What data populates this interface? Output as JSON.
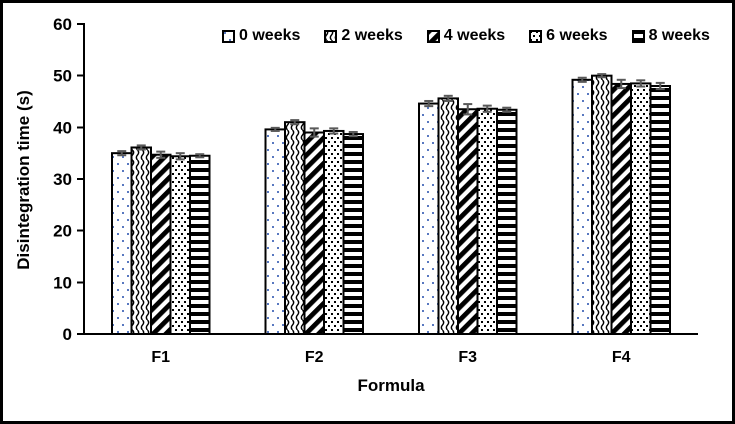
{
  "figure": {
    "background": "#ffffff",
    "border_color": "#000000"
  },
  "chart_data": {
    "type": "bar",
    "title": "",
    "xlabel": "Formula",
    "ylabel": "Disintegration time (s)",
    "ylim": [
      0,
      60
    ],
    "yticks": [
      0,
      10,
      20,
      30,
      40,
      50,
      60
    ],
    "grid": false,
    "legend_position": "top",
    "categories": [
      "F1",
      "F2",
      "F3",
      "F4"
    ],
    "series": [
      {
        "name": "0 weeks",
        "pattern": "sparse-blue-dots",
        "values": [
          35.0,
          39.6,
          44.6,
          49.2
        ],
        "errors": [
          0.4,
          0.3,
          0.5,
          0.4
        ]
      },
      {
        "name": "2 weeks",
        "pattern": "vertical-waves",
        "values": [
          36.1,
          41.0,
          45.6,
          50.0
        ],
        "errors": [
          0.4,
          0.4,
          0.5,
          0.3
        ]
      },
      {
        "name": "4 weeks",
        "pattern": "diagonal-stripes",
        "values": [
          34.7,
          39.0,
          43.5,
          48.4
        ],
        "errors": [
          0.6,
          0.8,
          1.0,
          0.8
        ]
      },
      {
        "name": "6 weeks",
        "pattern": "dense-black-dots",
        "values": [
          34.4,
          39.3,
          43.6,
          48.5
        ],
        "errors": [
          0.6,
          0.5,
          0.6,
          0.6
        ]
      },
      {
        "name": "8 weeks",
        "pattern": "horizontal-stripes",
        "values": [
          34.5,
          38.7,
          43.4,
          48.0
        ],
        "errors": [
          0.3,
          0.4,
          0.4,
          0.6
        ]
      }
    ],
    "colors": {
      "bar_fill": "#ffffff",
      "bar_outline": "#000000",
      "blue_dot": "#5878c0",
      "error_bar": "#595959",
      "text": "#000000"
    }
  }
}
